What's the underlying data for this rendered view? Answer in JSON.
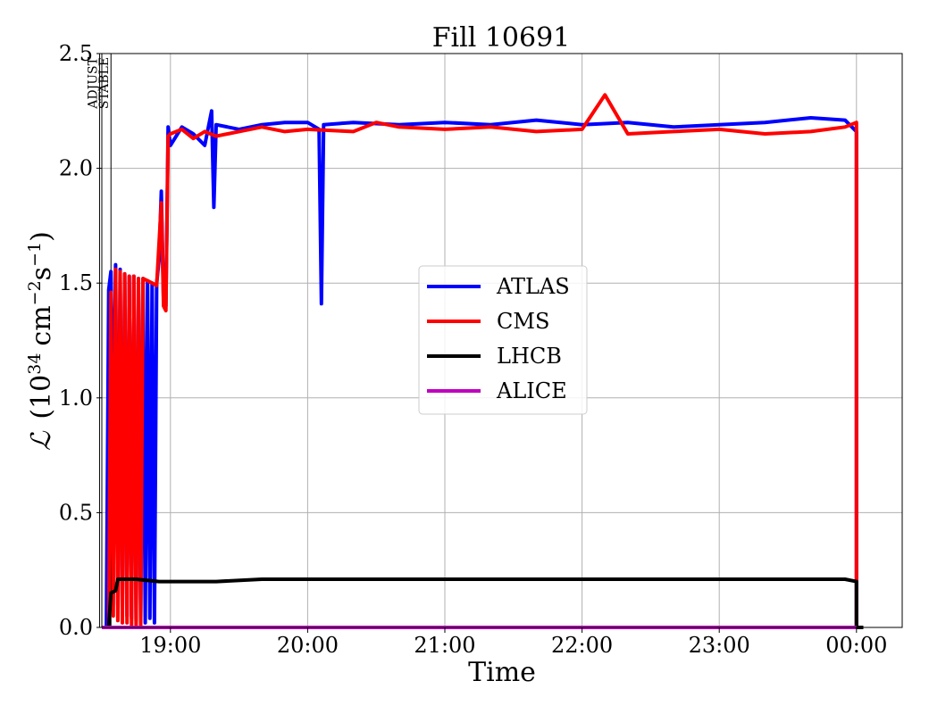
{
  "chart_data": {
    "type": "line",
    "title": "Fill 10691",
    "xlabel": "Time",
    "ylabel": "ℒ (10³⁴ cm⁻²s⁻¹)",
    "ylabel_parts": {
      "lum": "ℒ",
      "open": "(10",
      "exp1": "34",
      "mid": "cm",
      "exp2": "−2",
      "s": "s",
      "exp3": "−1",
      "close": ")"
    },
    "ylim": [
      0,
      2.5
    ],
    "xlim": [
      "18:30",
      "00:20"
    ],
    "x_ticks": [
      "19:00",
      "20:00",
      "21:00",
      "22:00",
      "23:00",
      "00:00"
    ],
    "y_ticks": [
      "0.0",
      "0.5",
      "1.0",
      "1.5",
      "2.0",
      "2.5"
    ],
    "grid": true,
    "legend_position": "center-right",
    "phase_markers": [
      {
        "label": "ADJUST",
        "time": "18:29"
      },
      {
        "label": "STABLE",
        "time": "18:34"
      }
    ],
    "series": [
      {
        "name": "ATLAS",
        "color": "#0000ff",
        "points": [
          [
            "18:30",
            0
          ],
          [
            "18:32",
            0
          ],
          [
            "18:33",
            1.47
          ],
          [
            "18:34",
            1.55
          ],
          [
            "18:35",
            0.78
          ],
          [
            "18:36",
            1.58
          ],
          [
            "18:37",
            0.1
          ],
          [
            "18:38",
            1.56
          ],
          [
            "18:39",
            0.08
          ],
          [
            "18:40",
            1.54
          ],
          [
            "18:41",
            0.05
          ],
          [
            "18:42",
            1.53
          ],
          [
            "18:43",
            0.04
          ],
          [
            "18:44",
            1.53
          ],
          [
            "18:45",
            0.03
          ],
          [
            "18:46",
            1.52
          ],
          [
            "18:47",
            0.03
          ],
          [
            "18:48",
            1.52
          ],
          [
            "18:49",
            0.02
          ],
          [
            "18:50",
            1.51
          ],
          [
            "18:51",
            0.04
          ],
          [
            "18:52",
            1.5
          ],
          [
            "18:53",
            0.02
          ],
          [
            "18:54",
            1.5
          ],
          [
            "18:55",
            1.6
          ],
          [
            "18:56",
            1.9
          ],
          [
            "18:57",
            1.42
          ],
          [
            "18:58",
            1.4
          ],
          [
            "18:59",
            2.18
          ],
          [
            "19:00",
            2.1
          ],
          [
            "19:05",
            2.18
          ],
          [
            "19:10",
            2.15
          ],
          [
            "19:15",
            2.1
          ],
          [
            "19:18",
            2.25
          ],
          [
            "19:19",
            1.83
          ],
          [
            "19:20",
            2.19
          ],
          [
            "19:30",
            2.17
          ],
          [
            "19:40",
            2.19
          ],
          [
            "19:50",
            2.2
          ],
          [
            "20:00",
            2.2
          ],
          [
            "20:05",
            2.17
          ],
          [
            "20:06",
            1.41
          ],
          [
            "20:07",
            2.19
          ],
          [
            "20:20",
            2.2
          ],
          [
            "20:40",
            2.19
          ],
          [
            "21:00",
            2.2
          ],
          [
            "21:20",
            2.19
          ],
          [
            "21:40",
            2.21
          ],
          [
            "22:00",
            2.19
          ],
          [
            "22:20",
            2.2
          ],
          [
            "22:40",
            2.18
          ],
          [
            "23:00",
            2.19
          ],
          [
            "23:20",
            2.2
          ],
          [
            "23:40",
            2.22
          ],
          [
            "23:55",
            2.21
          ],
          [
            "00:00",
            2.16
          ],
          [
            "00:00",
            0
          ],
          [
            "00:03",
            0
          ]
        ]
      },
      {
        "name": "CMS",
        "color": "#ff0000",
        "points": [
          [
            "18:30",
            0
          ],
          [
            "18:33",
            0
          ],
          [
            "18:34",
            1.46
          ],
          [
            "18:35",
            0.05
          ],
          [
            "18:36",
            1.56
          ],
          [
            "18:37",
            0.03
          ],
          [
            "18:38",
            1.55
          ],
          [
            "18:39",
            0.02
          ],
          [
            "18:40",
            1.54
          ],
          [
            "18:41",
            0.02
          ],
          [
            "18:42",
            1.53
          ],
          [
            "18:43",
            0.01
          ],
          [
            "18:44",
            1.53
          ],
          [
            "18:45",
            0.01
          ],
          [
            "18:46",
            1.52
          ],
          [
            "18:47",
            0.01
          ],
          [
            "18:48",
            1.52
          ],
          [
            "18:50",
            1.51
          ],
          [
            "18:52",
            1.5
          ],
          [
            "18:54",
            1.49
          ],
          [
            "18:56",
            1.85
          ],
          [
            "18:57",
            1.4
          ],
          [
            "18:58",
            1.38
          ],
          [
            "18:59",
            2.14
          ],
          [
            "19:00",
            2.15
          ],
          [
            "19:05",
            2.17
          ],
          [
            "19:10",
            2.13
          ],
          [
            "19:15",
            2.16
          ],
          [
            "19:20",
            2.14
          ],
          [
            "19:30",
            2.16
          ],
          [
            "19:40",
            2.18
          ],
          [
            "19:50",
            2.16
          ],
          [
            "20:00",
            2.17
          ],
          [
            "20:20",
            2.16
          ],
          [
            "20:30",
            2.2
          ],
          [
            "20:40",
            2.18
          ],
          [
            "21:00",
            2.17
          ],
          [
            "21:20",
            2.18
          ],
          [
            "21:40",
            2.16
          ],
          [
            "22:00",
            2.17
          ],
          [
            "22:10",
            2.32
          ],
          [
            "22:20",
            2.15
          ],
          [
            "22:40",
            2.16
          ],
          [
            "23:00",
            2.17
          ],
          [
            "23:20",
            2.15
          ],
          [
            "23:40",
            2.16
          ],
          [
            "23:55",
            2.18
          ],
          [
            "00:00",
            2.2
          ],
          [
            "00:00",
            0
          ],
          [
            "00:01",
            0
          ]
        ]
      },
      {
        "name": "LHCB",
        "color": "#000000",
        "points": [
          [
            "18:30",
            0
          ],
          [
            "18:33",
            0
          ],
          [
            "18:34",
            0.15
          ],
          [
            "18:36",
            0.16
          ],
          [
            "18:37",
            0.21
          ],
          [
            "18:45",
            0.21
          ],
          [
            "18:55",
            0.2
          ],
          [
            "19:00",
            0.2
          ],
          [
            "19:20",
            0.2
          ],
          [
            "19:40",
            0.21
          ],
          [
            "20:00",
            0.21
          ],
          [
            "20:20",
            0.21
          ],
          [
            "20:40",
            0.21
          ],
          [
            "21:00",
            0.21
          ],
          [
            "21:20",
            0.21
          ],
          [
            "21:40",
            0.21
          ],
          [
            "22:00",
            0.21
          ],
          [
            "22:20",
            0.21
          ],
          [
            "22:40",
            0.21
          ],
          [
            "23:00",
            0.21
          ],
          [
            "23:20",
            0.21
          ],
          [
            "23:40",
            0.21
          ],
          [
            "23:55",
            0.21
          ],
          [
            "00:00",
            0.2
          ],
          [
            "00:00",
            0
          ],
          [
            "00:03",
            0
          ]
        ]
      },
      {
        "name": "ALICE",
        "color": "#bf00bf",
        "points": [
          [
            "18:30",
            0
          ],
          [
            "00:00",
            0
          ]
        ]
      }
    ]
  }
}
